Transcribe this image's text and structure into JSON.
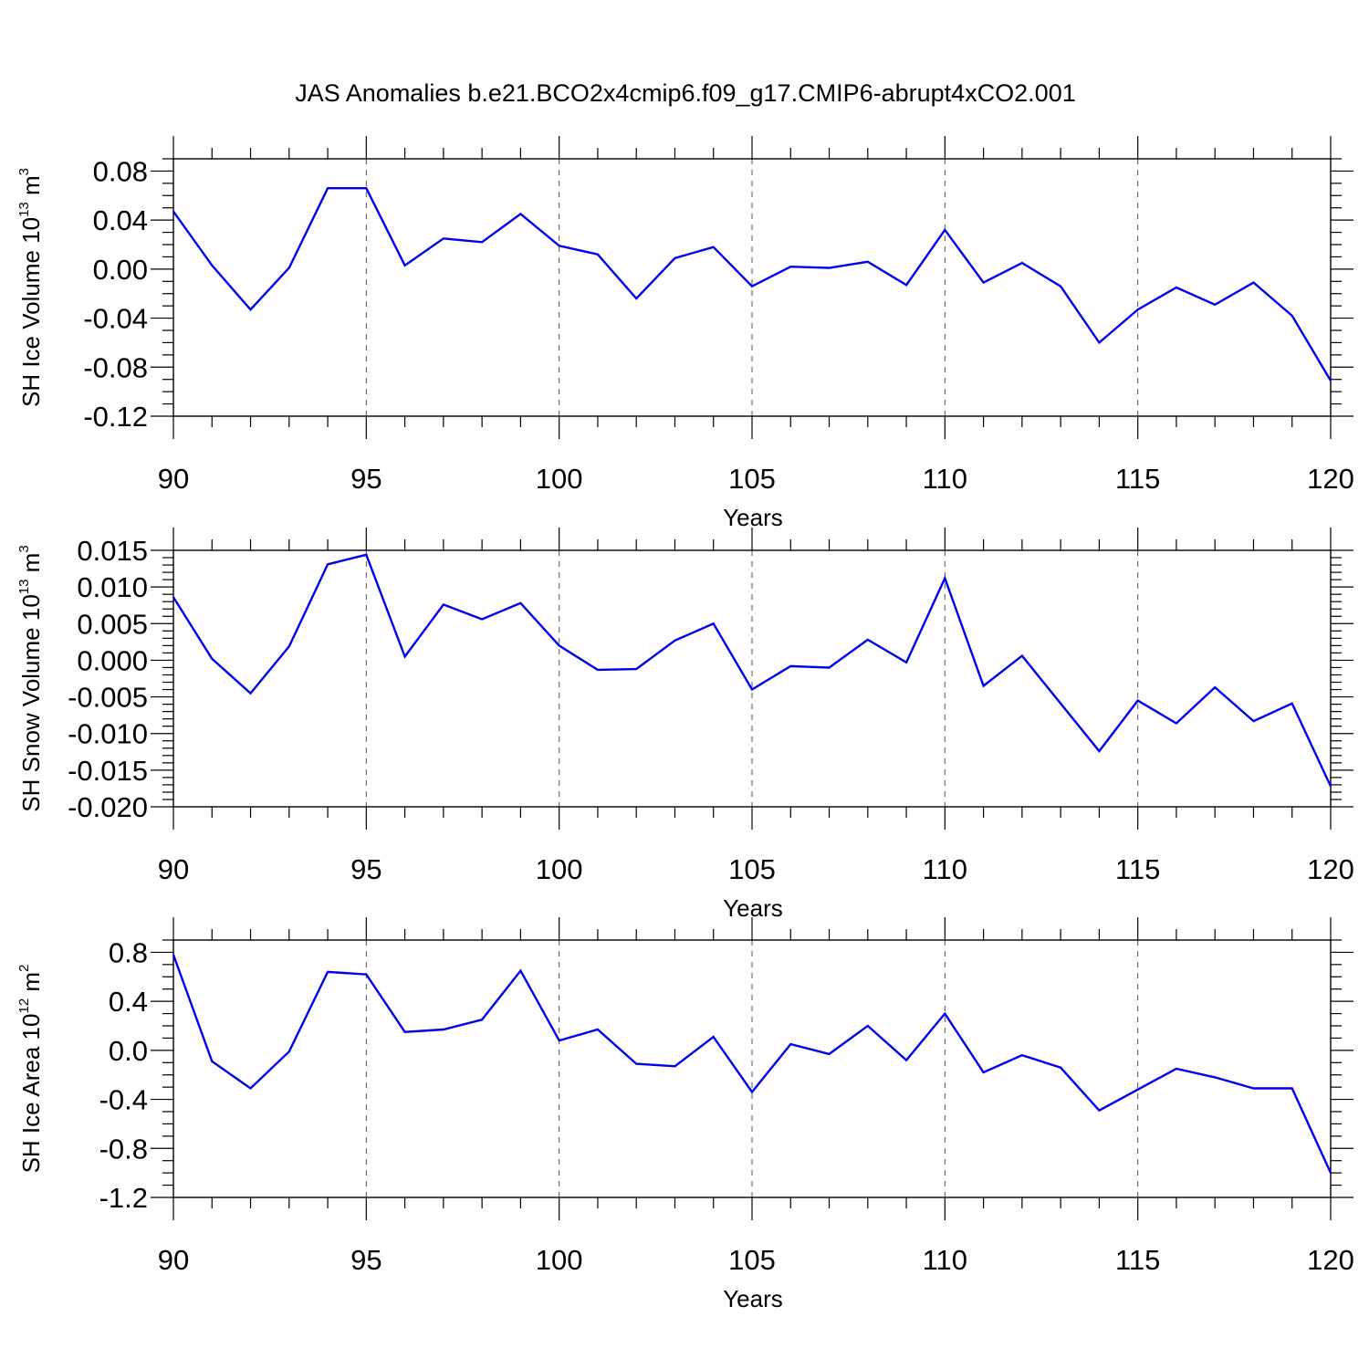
{
  "title": "JAS Anomalies b.e21.BCO2x4cmip6.f09_g17.CMIP6-abrupt4xCO2.001",
  "line_color": "#0000ee",
  "chart_data": [
    {
      "type": "line",
      "ylabel_main": "SH Ice Volume 10",
      "ylabel_exp": "13",
      "ylabel_unit": " m",
      "ylabel_unit_exp": "3",
      "xlabel": "Years",
      "xlim": [
        90,
        120
      ],
      "ylim": [
        -0.12,
        0.09
      ],
      "y_ticks": [
        -0.12,
        -0.08,
        -0.04,
        0.0,
        0.04,
        0.08
      ],
      "y_tick_labels": [
        "-0.12",
        "-0.08",
        "-0.04",
        "0.00",
        "0.04",
        "0.08"
      ],
      "y_minor_step": 0.01,
      "x_ticks": [
        90,
        95,
        100,
        105,
        110,
        115,
        120
      ],
      "x_tick_labels": [
        "90",
        "95",
        "100",
        "105",
        "110",
        "115",
        "120"
      ],
      "x_minor_step": 1,
      "grid": "x-major-dashed",
      "series": [
        {
          "x": [
            90,
            91,
            92,
            93,
            94,
            95,
            96,
            97,
            98,
            99,
            100,
            101,
            102,
            103,
            104,
            105,
            106,
            107,
            108,
            109,
            110,
            111,
            112,
            113,
            114,
            115,
            116,
            117,
            118,
            119,
            120
          ],
          "values": [
            0.047,
            0.003,
            -0.033,
            0.001,
            0.066,
            0.066,
            0.003,
            0.025,
            0.022,
            0.045,
            0.019,
            0.012,
            -0.024,
            0.009,
            0.018,
            -0.014,
            0.002,
            0.001,
            0.006,
            -0.013,
            0.032,
            -0.011,
            0.005,
            -0.014,
            -0.06,
            -0.033,
            -0.015,
            -0.029,
            -0.011,
            -0.038,
            -0.091
          ]
        }
      ]
    },
    {
      "type": "line",
      "ylabel_main": "SH Snow Volume 10",
      "ylabel_exp": "13",
      "ylabel_unit": " m",
      "ylabel_unit_exp": "3",
      "xlabel": "Years",
      "xlim": [
        90,
        120
      ],
      "ylim": [
        -0.02,
        0.015
      ],
      "y_ticks": [
        -0.02,
        -0.015,
        -0.01,
        -0.005,
        0.0,
        0.005,
        0.01,
        0.015
      ],
      "y_tick_labels": [
        "-0.020",
        "-0.015",
        "-0.010",
        "-0.005",
        "0.000",
        "0.005",
        "0.010",
        "0.015"
      ],
      "y_minor_step": 0.001,
      "x_ticks": [
        90,
        95,
        100,
        105,
        110,
        115,
        120
      ],
      "x_tick_labels": [
        "90",
        "95",
        "100",
        "105",
        "110",
        "115",
        "120"
      ],
      "x_minor_step": 1,
      "grid": "x-major-dashed",
      "series": [
        {
          "x": [
            90,
            91,
            92,
            93,
            94,
            95,
            96,
            97,
            98,
            99,
            100,
            101,
            102,
            103,
            104,
            105,
            106,
            107,
            108,
            109,
            110,
            111,
            112,
            113,
            114,
            115,
            116,
            117,
            118,
            119,
            120
          ],
          "values": [
            0.0086,
            0.0002,
            -0.0045,
            0.0019,
            0.0131,
            0.0144,
            0.0005,
            0.0076,
            0.0056,
            0.0078,
            0.002,
            -0.0013,
            -0.0012,
            0.0027,
            0.005,
            -0.004,
            -0.0008,
            -0.001,
            0.0028,
            -0.0003,
            0.0112,
            -0.0035,
            0.0006,
            -0.0059,
            -0.0124,
            -0.0055,
            -0.0086,
            -0.0037,
            -0.0083,
            -0.0059,
            -0.0172
          ]
        }
      ]
    },
    {
      "type": "line",
      "ylabel_main": "SH Ice Area 10",
      "ylabel_exp": "12",
      "ylabel_unit": " m",
      "ylabel_unit_exp": "2",
      "xlabel": "Years",
      "xlim": [
        90,
        120
      ],
      "ylim": [
        -1.2,
        0.9
      ],
      "y_ticks": [
        -1.2,
        -0.8,
        -0.4,
        0.0,
        0.4,
        0.8
      ],
      "y_tick_labels": [
        "-1.2",
        "-0.8",
        "-0.4",
        "0.0",
        "0.4",
        "0.8"
      ],
      "y_minor_step": 0.1,
      "x_ticks": [
        90,
        95,
        100,
        105,
        110,
        115,
        120
      ],
      "x_tick_labels": [
        "90",
        "95",
        "100",
        "105",
        "110",
        "115",
        "120"
      ],
      "x_minor_step": 1,
      "grid": "x-major-dashed",
      "series": [
        {
          "x": [
            90,
            91,
            92,
            93,
            94,
            95,
            96,
            97,
            98,
            99,
            100,
            101,
            102,
            103,
            104,
            105,
            106,
            107,
            108,
            109,
            110,
            111,
            112,
            113,
            114,
            115,
            116,
            117,
            118,
            119,
            120
          ],
          "values": [
            0.78,
            -0.09,
            -0.31,
            -0.01,
            0.64,
            0.62,
            0.15,
            0.17,
            0.25,
            0.65,
            0.08,
            0.17,
            -0.11,
            -0.13,
            0.11,
            -0.34,
            0.05,
            -0.03,
            0.2,
            -0.08,
            0.3,
            -0.18,
            -0.04,
            -0.14,
            -0.49,
            -0.32,
            -0.15,
            -0.22,
            -0.31,
            -0.31,
            -1.0
          ]
        }
      ]
    }
  ]
}
